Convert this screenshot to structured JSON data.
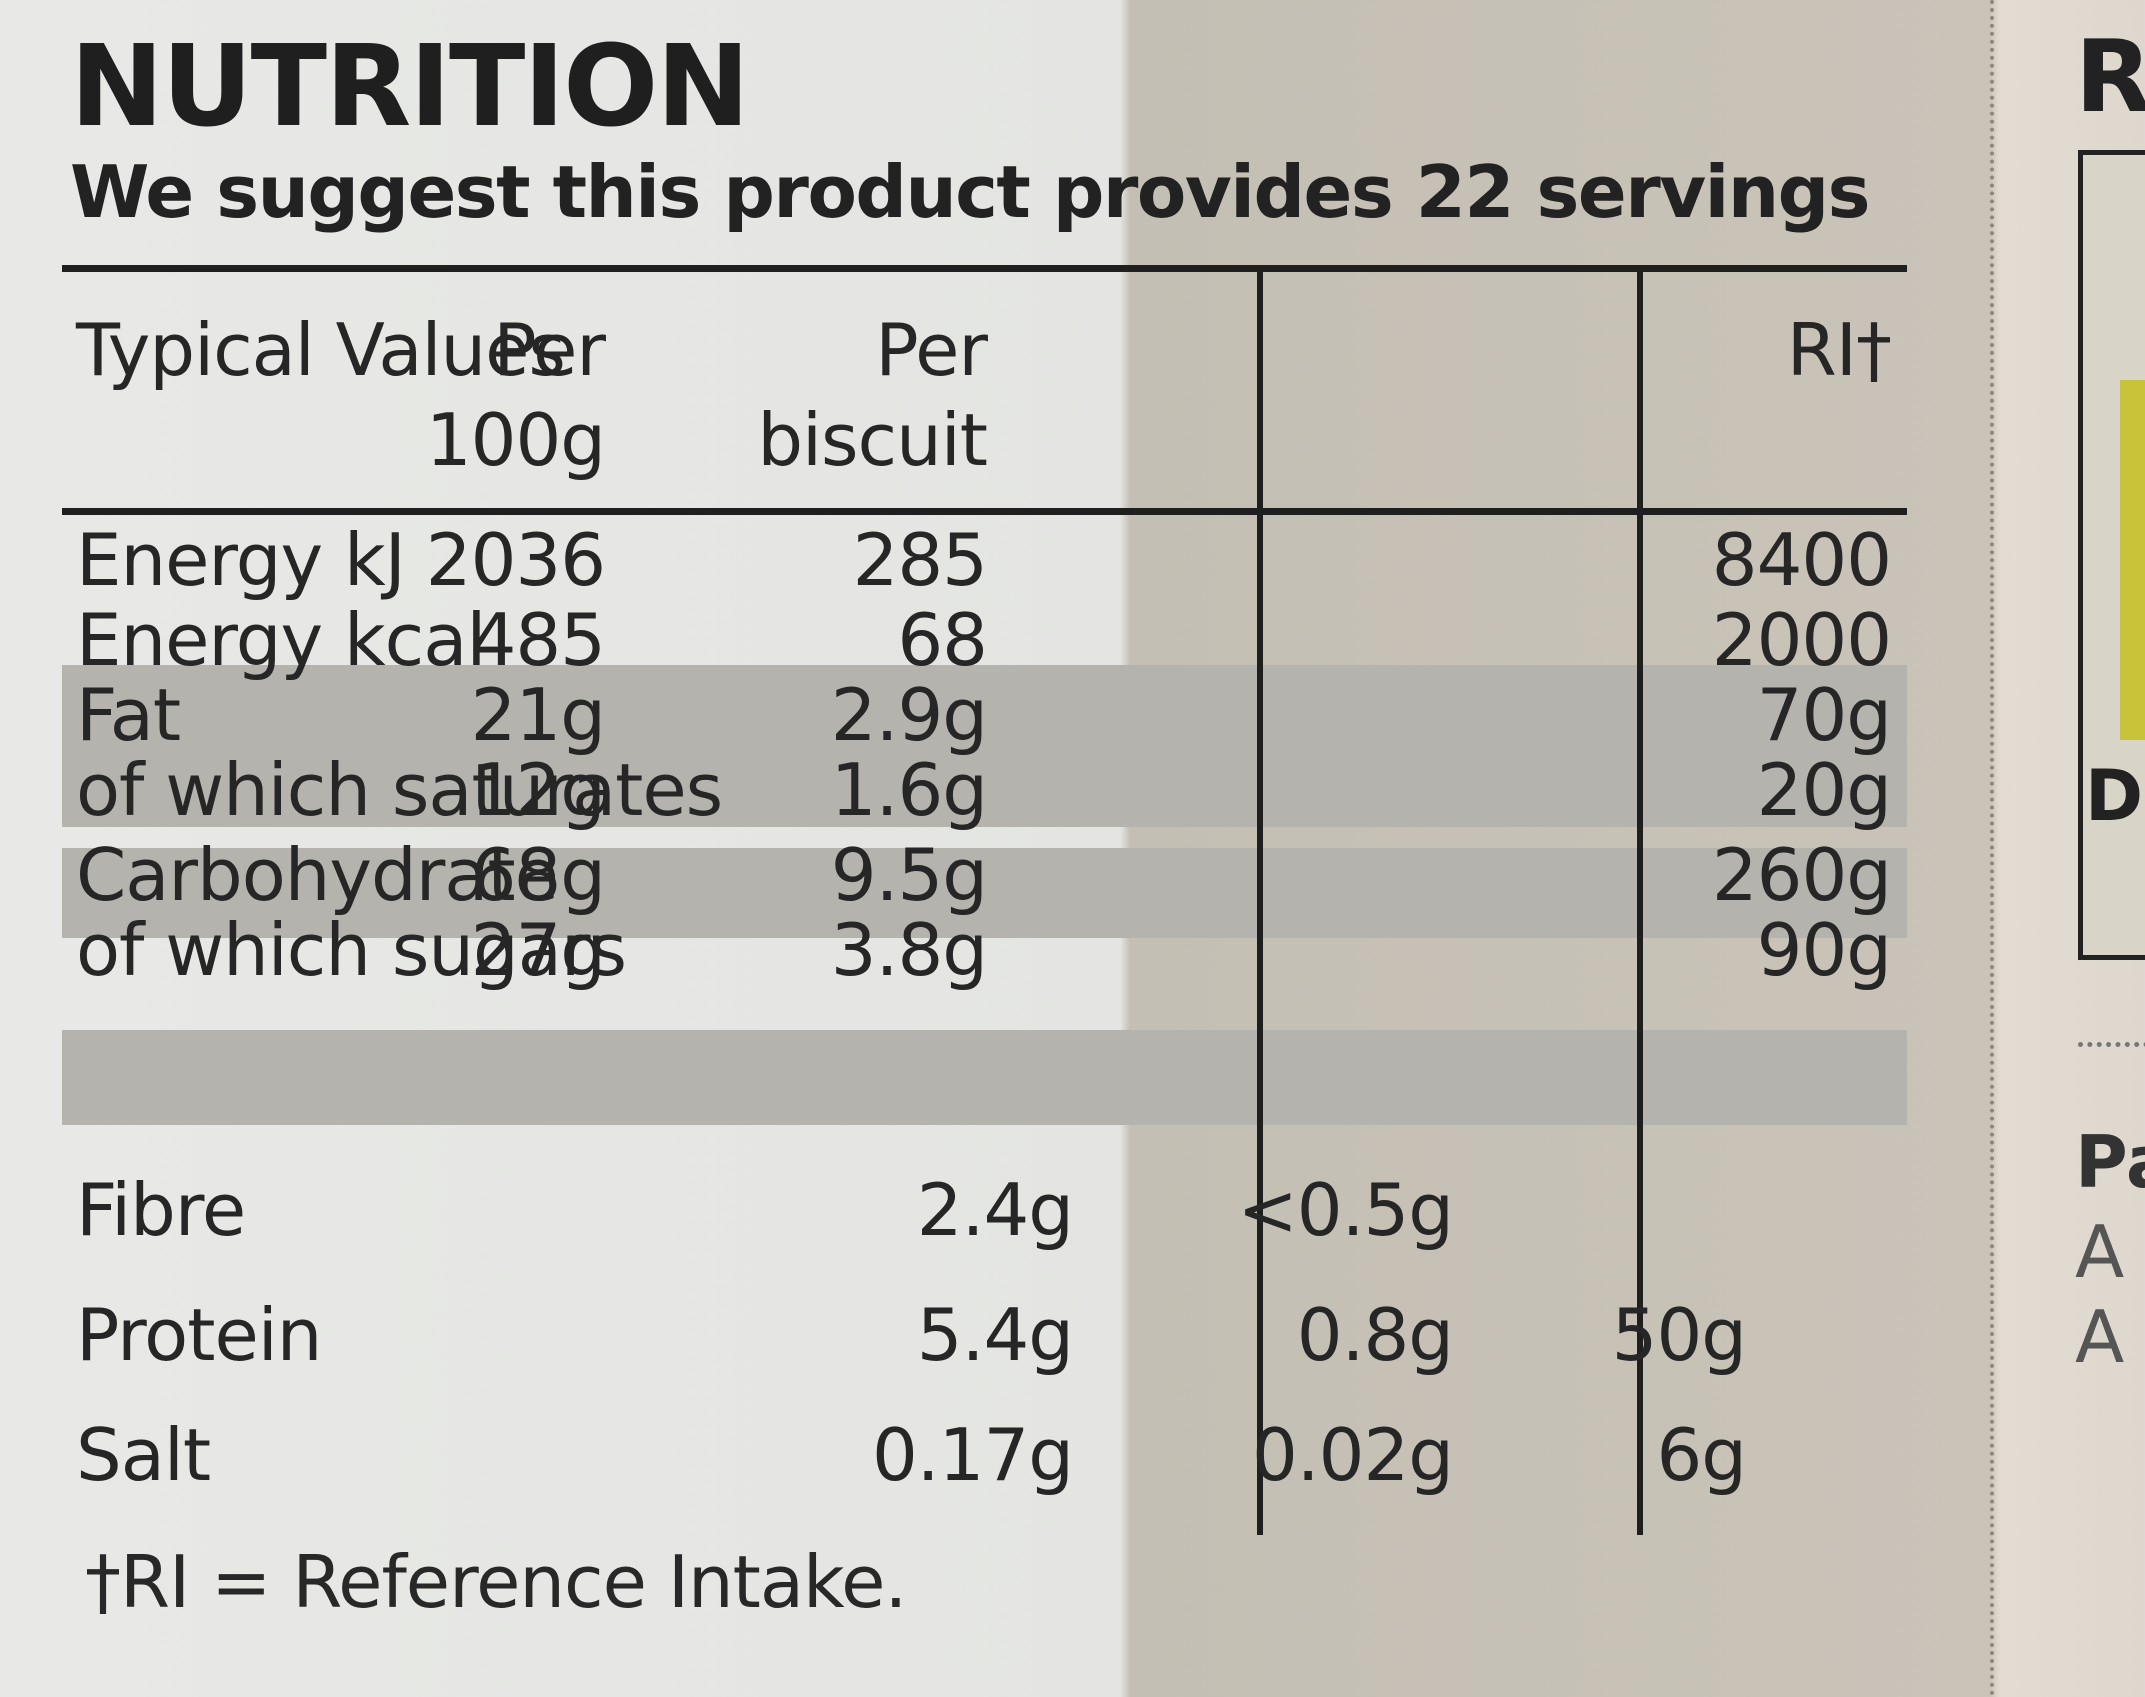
{
  "label": {
    "title": "NUTRITION",
    "subtitle": "We suggest this product provides 22 servings",
    "headers": {
      "label": "Typical Values",
      "per100_line1": "Per",
      "per100_line2": "100g",
      "perbiscuit_line1": "Per",
      "perbiscuit_line2": "biscuit",
      "ri": "RI†"
    },
    "rows": [
      {
        "label": "Energy kJ",
        "per100": "2036",
        "perbiscuit": "285",
        "ri": "8400",
        "shaded": false
      },
      {
        "label": "Energy kcal",
        "per100": "485",
        "perbiscuit": "68",
        "ri": "2000",
        "shaded": false
      },
      {
        "label": "Fat",
        "per100": "21g",
        "perbiscuit": "2.9g",
        "ri": "70g",
        "shaded": true
      },
      {
        "label": "of which saturates",
        "per100": "12g",
        "perbiscuit": "1.6g",
        "ri": "20g",
        "shaded": true
      },
      {
        "label": "Carbohydrate",
        "per100": "68g",
        "perbiscuit": "9.5g",
        "ri": "260g",
        "shaded": false
      },
      {
        "label": "of which sugars",
        "per100": "27g",
        "perbiscuit": "3.8g",
        "ri": "90g",
        "shaded": false
      },
      {
        "label": "Fibre",
        "per100": "2.4g",
        "perbiscuit": "<0.5g",
        "ri": "",
        "shaded": true
      },
      {
        "label": "Protein",
        "per100": "5.4g",
        "perbiscuit": "0.8g",
        "ri": "50g",
        "shaded": false
      },
      {
        "label": "Salt",
        "per100": "0.17g",
        "perbiscuit": "0.02g",
        "ri": "6g",
        "shaded": true
      }
    ],
    "footnote": "†RI = Reference Intake."
  },
  "adjacent_panel": {
    "letter_top": "R",
    "letter_mid": "D",
    "text_pa": "Pa",
    "text_a1": "A",
    "text_a2": "A"
  },
  "colors": {
    "shade_band": "#b5b3ad",
    "rule": "#1f1f1f",
    "accent_green": "#c7c43a"
  }
}
